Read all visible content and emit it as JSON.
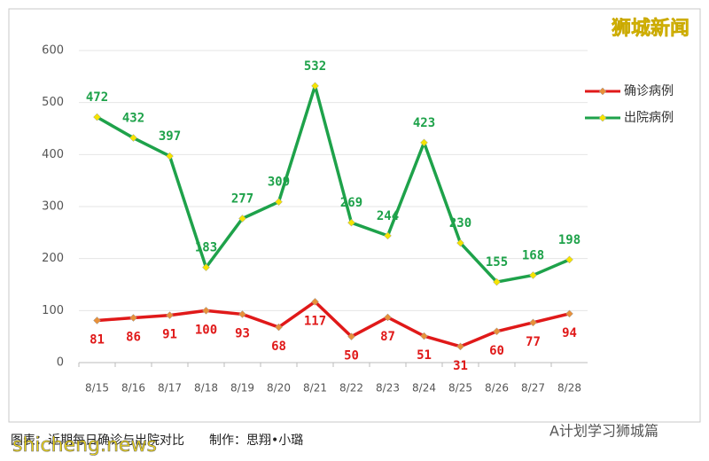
{
  "chart_data": {
    "type": "line",
    "categories": [
      "8/15",
      "8/16",
      "8/17",
      "8/18",
      "8/19",
      "8/20",
      "8/21",
      "8/22",
      "8/23",
      "8/24",
      "8/25",
      "8/26",
      "8/27",
      "8/28"
    ],
    "series": [
      {
        "name": "确诊病例",
        "color": "#e01919",
        "marker_color": "#e8913a",
        "label_position": "below",
        "values": [
          81,
          86,
          91,
          100,
          93,
          68,
          117,
          50,
          87,
          51,
          31,
          60,
          77,
          94
        ]
      },
      {
        "name": "出院病例",
        "color": "#1ea24a",
        "marker_color": "#f5e400",
        "label_position": "above",
        "values": [
          472,
          432,
          397,
          183,
          277,
          309,
          532,
          269,
          244,
          423,
          230,
          155,
          168,
          198
        ]
      }
    ],
    "ylim": [
      0,
      600
    ],
    "yticks": [
      0,
      100,
      200,
      300,
      400,
      500,
      600
    ],
    "grid": true,
    "legend": "right"
  },
  "watermark_top": "狮城新闻",
  "caption": "图表：近期每日确诊与出院对比　　制作：思翔•小璐",
  "watermark_bottom_left": "shicheng.news",
  "watermark_bottom_right": "A计划学习狮城篇"
}
